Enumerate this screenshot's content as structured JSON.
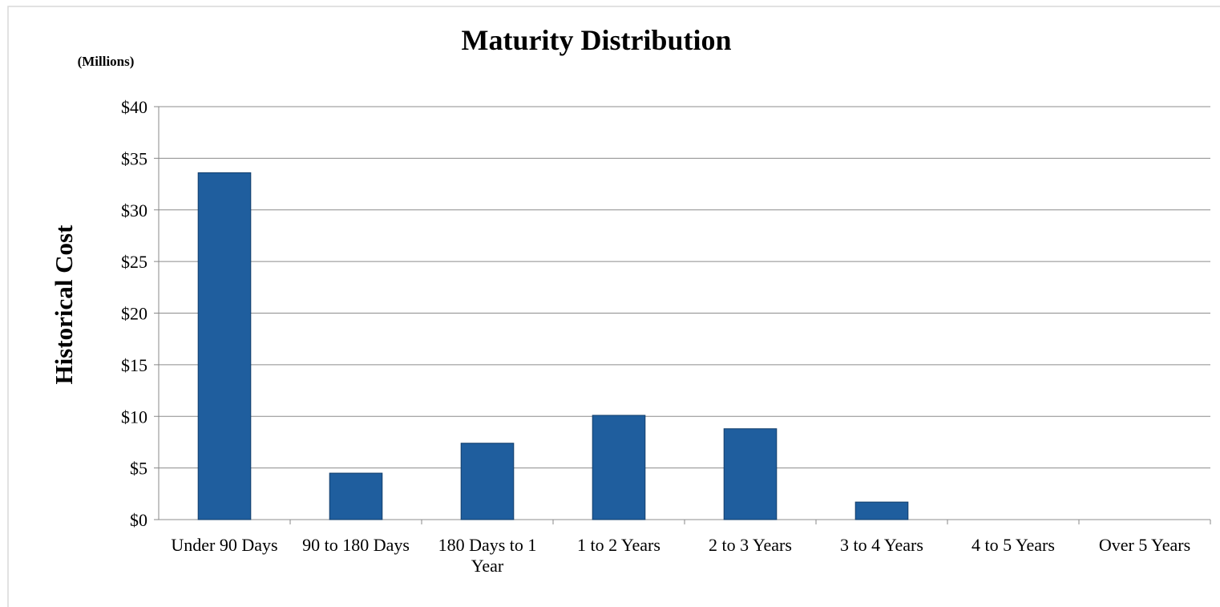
{
  "chart_data": {
    "type": "bar",
    "title": "Maturity Distribution",
    "subtitle": "(Millions)",
    "y_label": "Historical Cost",
    "categories": [
      "Under 90 Days",
      "90 to 180 Days",
      "180 Days to 1 Year",
      "1 to 2 Years",
      "2 to 3 Years",
      "3 to 4 Years",
      "4 to 5 Years",
      "Over 5 Years"
    ],
    "values": [
      33.6,
      4.5,
      7.4,
      10.1,
      8.8,
      1.7,
      0,
      0
    ],
    "color": "#1f5e9e",
    "ylim": [
      0,
      40
    ],
    "yticks": [
      {
        "value": 0,
        "label": "$0"
      },
      {
        "value": 5,
        "label": "$5"
      },
      {
        "value": 10,
        "label": "$10"
      },
      {
        "value": 15,
        "label": "$15"
      },
      {
        "value": 20,
        "label": "$20"
      },
      {
        "value": 25,
        "label": "$25"
      },
      {
        "value": 30,
        "label": "$30"
      },
      {
        "value": 35,
        "label": "$35"
      },
      {
        "value": 40,
        "label": "$40"
      }
    ],
    "grid": true
  }
}
